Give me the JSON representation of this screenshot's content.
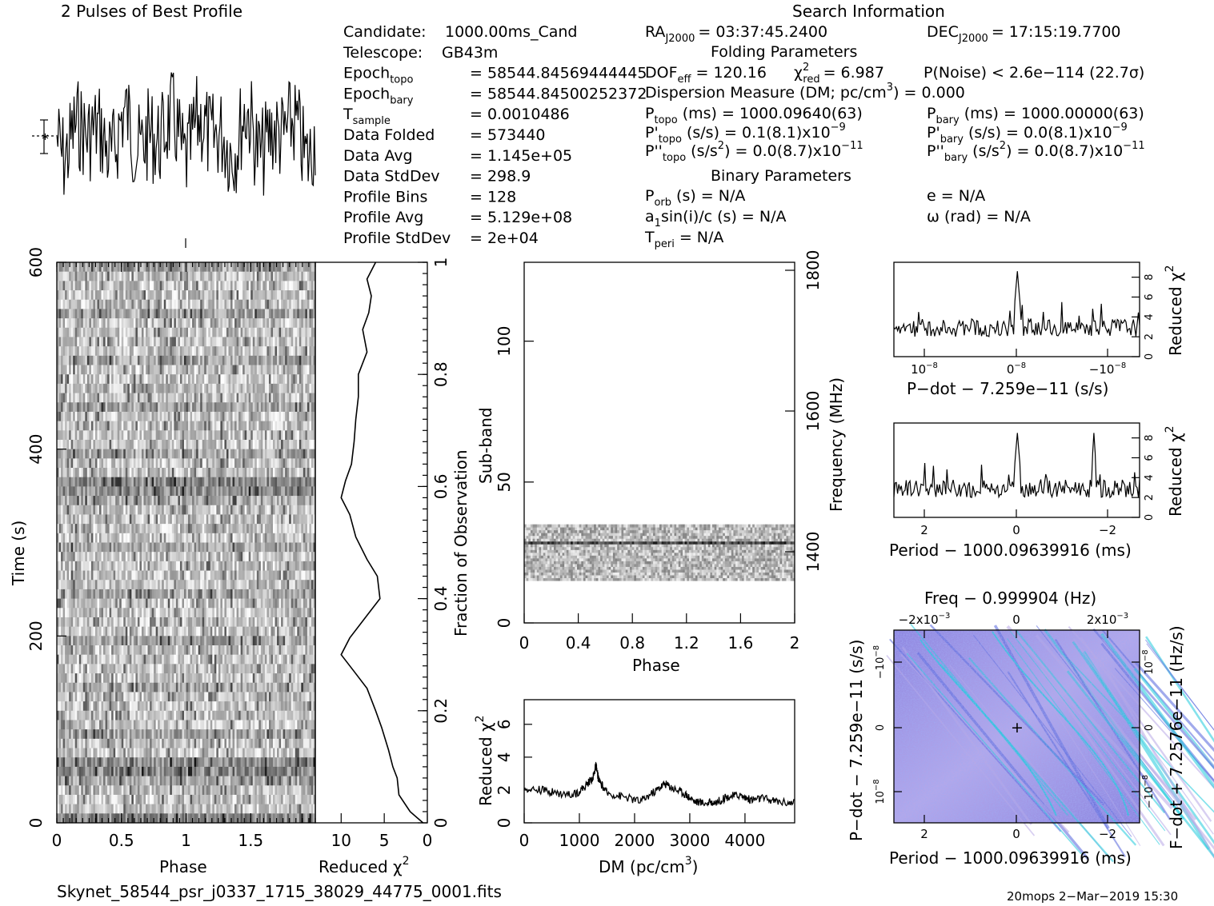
{
  "header": {
    "profile_title": "2 Pulses of Best Profile",
    "search_title": "Search Information",
    "folding_title": "Folding Parameters",
    "binary_title": "Binary Parameters"
  },
  "info_left": [
    {
      "label": "Candidate:",
      "value": "1000.00ms_Cand"
    },
    {
      "label": "Telescope:",
      "value": "GB43m"
    },
    {
      "label": "Epoch",
      "sub": "topo",
      "value": "= 58544.84569444445"
    },
    {
      "label": "Epoch",
      "sub": "bary",
      "value": "= 58544.84500252372"
    },
    {
      "label": "T",
      "sub": "sample",
      "value": "=   0.0010486"
    },
    {
      "label": "Data Folded",
      "value": "=   573440"
    },
    {
      "label": "Data Avg",
      "value": "=   1.145e+05"
    },
    {
      "label": "Data StdDev",
      "value": "=   298.9"
    },
    {
      "label": "Profile Bins",
      "value": "=   128"
    },
    {
      "label": "Profile Avg",
      "value": "=   5.129e+08"
    },
    {
      "label": "Profile StdDev",
      "value": "=   2e+04"
    }
  ],
  "info_search": {
    "ra": "RA",
    "ra_sub": "J2000",
    "ra_val": "= 03:37:45.2400",
    "dec": "DEC",
    "dec_sub": "J2000",
    "dec_val": "= 17:15:19.7700",
    "dof": "DOF",
    "dof_sub": "eff",
    "dof_val": "= 120.16",
    "chi": "χ",
    "chi_sup": "2",
    "chi_sub": "red",
    "chi_val": "= 6.987",
    "pnoise": "P(Noise) < 2.6e−114   (22.7σ)",
    "dm": "Dispersion Measure (DM; pc/cm",
    "dm_sup": "3",
    "dm_val": ") = 0.000",
    "ptopo": "P",
    "ptopo_sub": "topo",
    "ptopo_val": "(ms) =   1000.09640(63)",
    "pbary": "P",
    "pbary_sub": "bary",
    "pbary_val": "(ms) =   1000.00000(63)",
    "pdtopo": "P'",
    "pdtopo_sub": "topo",
    "pdtopo_val": "(s/s) =   0.1(8.1)x10",
    "pdtopo_exp": "−9",
    "pdbary": "P'",
    "pdbary_sub": "bary",
    "pdbary_val": "(s/s) = 0.0(8.1)x10",
    "pdbary_exp": "−9",
    "pddtopo": "P''",
    "pddtopo_sub": "topo",
    "pddtopo_val": "(s/s",
    "pddtopo_sup": "2",
    "pddtopo_val2": ") = 0.0(8.7)x10",
    "pddtopo_exp": "−11",
    "pddbary": "P''",
    "pddbary_sub": "bary",
    "pddbary_val": "(s/s",
    "pddbary_sup": "2",
    "pddbary_val2": ") = 0.0(8.7)x10",
    "pddbary_exp": "−11",
    "porb": "P",
    "porb_sub": "orb",
    "porb_val": "(s) = N/A",
    "ecc": "e = N/A",
    "asini": "a",
    "asini_sub": "1",
    "asini_val": "sin(i)/c (s) = N/A",
    "omega": "ω (rad) = N/A",
    "tperi": "T",
    "tperi_sub": "peri",
    "tperi_val": "= N/A"
  },
  "footer": {
    "filename": "Skynet_58544_psr_j0337_1715_38029_44775_0001.fits",
    "stamp": "20mops   2−Mar−2019 15:30"
  },
  "colors": {
    "ink": "#000000",
    "ppdot_low": "#b9a9e6",
    "ppdot_mid": "#5566dd",
    "ppdot_high": "#22ccdd"
  },
  "chart_data": [
    {
      "type": "line",
      "name": "profile",
      "title": "2 Pulses of Best Profile",
      "note": "two rotations of the folded pulse profile, noise-like",
      "error_bar": true
    },
    {
      "type": "heatmap",
      "name": "time-phase",
      "xlabel": "Phase",
      "ylabel": "Time (s)",
      "xlim": [
        0,
        2
      ],
      "ylim": [
        0,
        600
      ],
      "x_ticks": [
        "0",
        "0.5",
        "1",
        "1.5"
      ],
      "y_ticks": [
        "0",
        "200",
        "400",
        "600"
      ],
      "right_axis_label": "Fraction of Observation",
      "right_ticks": [
        "0",
        "0.2",
        "0.4",
        "0.6",
        "0.8",
        "1"
      ]
    },
    {
      "type": "line",
      "name": "time-chi2",
      "xlabel": "Reduced χ",
      "xlabel_sup": "2",
      "x_ticks": [
        "10",
        "5",
        "0"
      ],
      "xlim": [
        13,
        0
      ],
      "fraction": [
        0,
        0.02,
        0.05,
        0.08,
        0.1,
        0.13,
        0.17,
        0.2,
        0.24,
        0.27,
        0.3,
        0.33,
        0.37,
        0.4,
        0.44,
        0.47,
        0.51,
        0.55,
        0.58,
        0.61,
        0.64,
        0.68,
        0.72,
        0.76,
        0.8,
        0.84,
        0.88,
        0.91,
        0.94,
        0.97,
        1.0
      ],
      "chi2": [
        0.5,
        2.0,
        3.3,
        3.5,
        4.0,
        4.5,
        5.3,
        6.0,
        7.0,
        8.5,
        10.0,
        9.0,
        7.0,
        5.5,
        5.8,
        7.0,
        8.3,
        9.0,
        10.0,
        9.5,
        8.8,
        8.5,
        8.3,
        8.0,
        8.0,
        7.0,
        7.5,
        6.8,
        6.5,
        7.0,
        6.0
      ]
    },
    {
      "type": "heatmap",
      "name": "subband-phase",
      "xlabel": "Phase",
      "ylabel": "Sub-band",
      "right_axis_label": "Frequency (MHz)",
      "xlim": [
        0,
        2
      ],
      "ylim": [
        0,
        128
      ],
      "x_ticks": [
        "0",
        "0.4",
        "0.8",
        "1.2",
        "1.6",
        "2"
      ],
      "y_ticks": [
        "0",
        "50",
        "100"
      ],
      "right_ticks": [
        "1400",
        "1600",
        "1800"
      ],
      "active_subbands": [
        15,
        35
      ]
    },
    {
      "type": "line",
      "name": "dm-chi2",
      "xlabel": "DM (pc/cm",
      "xlabel_sup": "3",
      "xlabel_end": ")",
      "ylabel": "Reduced χ",
      "ylabel_sup": "2",
      "xlim": [
        0,
        4900
      ],
      "ylim": [
        0,
        7.5
      ],
      "x_ticks": [
        "0",
        "1000",
        "2000",
        "3000",
        "4000"
      ],
      "y_ticks": [
        "0",
        "2",
        "4",
        "6"
      ],
      "dm": [
        0,
        300,
        600,
        900,
        1100,
        1250,
        1300,
        1350,
        1500,
        1800,
        2100,
        2400,
        2550,
        2700,
        2900,
        3100,
        3300,
        3500,
        3700,
        3900,
        4100,
        4300,
        4600,
        4900
      ],
      "chi2": [
        2.1,
        2.0,
        1.8,
        1.7,
        2.2,
        2.8,
        3.5,
        2.6,
        1.8,
        1.6,
        1.3,
        2.0,
        2.4,
        2.1,
        1.8,
        1.3,
        1.2,
        1.3,
        1.6,
        1.7,
        1.4,
        1.5,
        1.3,
        1.2
      ]
    },
    {
      "type": "line",
      "name": "pdot-chi2",
      "xlabel": "P−dot − 7.259e−11 (s/s)",
      "ylabel": "Reduced χ",
      "ylabel_sup": "2",
      "x_ticks": [
        "10",
        "0",
        "−10"
      ],
      "x_tick_exp": "−8",
      "y_ticks": [
        "0",
        "2",
        "4",
        "6",
        "8"
      ],
      "ylim": [
        0,
        9.5
      ],
      "peak_chi2": 8.6
    },
    {
      "type": "line",
      "name": "period-chi2",
      "xlabel": "Period − 1000.09639916 (ms)",
      "ylabel": "Reduced χ",
      "ylabel_sup": "2",
      "x_ticks": [
        "2",
        "0",
        "−2"
      ],
      "y_ticks": [
        "0",
        "2",
        "4",
        "6",
        "8"
      ],
      "ylim": [
        0,
        9.5
      ],
      "peak_chi2": 8.5
    },
    {
      "type": "heatmap",
      "name": "ppdot-plane",
      "title": "Freq − 0.999904 (Hz)",
      "xlabel": "Period − 1000.09639916 (ms)",
      "ylabel": "P−dot − 7.259e−11 (s/s)",
      "right_axis_label": "F−dot + 7.2576e−11 (Hz/s)",
      "x_ticks": [
        "2",
        "0",
        "−2"
      ],
      "top_ticks": [
        "−2x10",
        "0",
        "2x10"
      ],
      "top_tick_exp": "−3",
      "left_ticks": [
        "−10",
        "0",
        "10"
      ],
      "left_tick_exp": "−8",
      "right_ticks": [
        "10",
        "0",
        "−10"
      ],
      "right_tick_exp": "−8"
    }
  ]
}
